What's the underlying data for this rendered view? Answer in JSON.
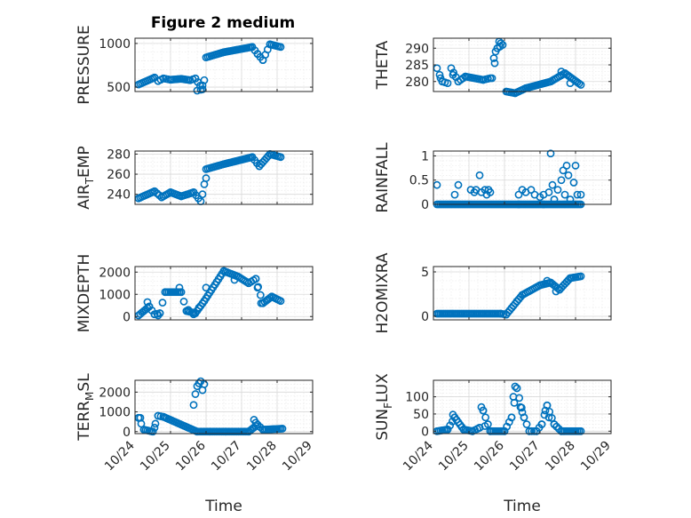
{
  "figure": {
    "title": "Figure 2 medium"
  },
  "chart_data": [
    {
      "type": "scatter",
      "title": "Figure 2 medium",
      "ylabel": "PRESSURE",
      "xlabel": "",
      "xlim": [
        0,
        5
      ],
      "ylim": [
        450,
        1060
      ],
      "xticks": [
        0,
        1,
        2,
        3,
        4,
        5
      ],
      "xticklabels": [
        "10/24",
        "10/25",
        "10/26",
        "10/27",
        "10/28",
        "10/29"
      ],
      "show_xticklabels": false,
      "yticks": [
        500,
        1000
      ],
      "yticklabels": [
        "500",
        "1000"
      ],
      "color": "#0072bd",
      "segments": [
        [
          0.1,
          530,
          0.55,
          610
        ],
        [
          0.55,
          610,
          0.65,
          570
        ],
        [
          0.65,
          570,
          0.8,
          600
        ],
        [
          0.8,
          600,
          1.0,
          585
        ],
        [
          1.0,
          585,
          1.3,
          595
        ],
        [
          1.3,
          595,
          1.55,
          580
        ],
        [
          1.55,
          580,
          1.7,
          600
        ],
        [
          1.7,
          600,
          1.9,
          475
        ],
        [
          2.0,
          840,
          2.5,
          900
        ],
        [
          2.5,
          900,
          3.3,
          960
        ],
        [
          3.3,
          960,
          3.45,
          880
        ],
        [
          3.45,
          880,
          3.6,
          810
        ],
        [
          3.6,
          810,
          3.8,
          990
        ],
        [
          3.8,
          990,
          4.1,
          960
        ]
      ],
      "extra_points": [
        [
          1.75,
          460
        ],
        [
          1.85,
          470
        ],
        [
          1.9,
          520
        ],
        [
          1.95,
          580
        ]
      ]
    },
    {
      "type": "scatter",
      "ylabel": "THETA",
      "xlabel": "",
      "xlim": [
        0,
        5
      ],
      "ylim": [
        277,
        293
      ],
      "xticks": [
        0,
        1,
        2,
        3,
        4,
        5
      ],
      "xticklabels": [
        "10/24",
        "10/25",
        "10/26",
        "10/27",
        "10/28",
        "10/29"
      ],
      "show_xticklabels": false,
      "yticks": [
        280,
        285,
        290
      ],
      "yticklabels": [
        "280",
        "285",
        "290"
      ],
      "color": "#0072bd",
      "segments": [
        [
          0.1,
          284,
          0.25,
          280
        ],
        [
          0.25,
          280,
          0.4,
          279.5
        ],
        [
          0.5,
          284,
          0.7,
          280
        ],
        [
          0.7,
          280,
          0.9,
          281.5
        ],
        [
          0.9,
          281.5,
          1.4,
          280.5
        ],
        [
          1.4,
          280.5,
          1.6,
          281
        ],
        [
          1.65,
          281,
          1.8,
          290
        ],
        [
          1.8,
          290,
          1.95,
          291
        ],
        [
          2.05,
          277,
          2.3,
          276.5
        ],
        [
          2.3,
          276.5,
          2.6,
          278
        ],
        [
          2.6,
          278,
          3.3,
          280
        ],
        [
          3.3,
          280,
          3.7,
          282.5
        ],
        [
          3.7,
          282.5,
          4.15,
          279
        ]
      ],
      "extra_points": [
        [
          0.2,
          281
        ],
        [
          0.55,
          282
        ],
        [
          1.7,
          287
        ],
        [
          1.75,
          289
        ],
        [
          1.85,
          292
        ],
        [
          1.9,
          291.5
        ],
        [
          3.6,
          283
        ],
        [
          3.85,
          279.5
        ]
      ]
    },
    {
      "type": "scatter",
      "ylabel": "AIR_TEMP",
      "xlabel": "",
      "xlim": [
        0,
        5
      ],
      "ylim": [
        230,
        283
      ],
      "xticks": [
        0,
        1,
        2,
        3,
        4,
        5
      ],
      "xticklabels": [
        "10/24",
        "10/25",
        "10/26",
        "10/27",
        "10/28",
        "10/29"
      ],
      "show_xticklabels": false,
      "yticks": [
        240,
        260,
        280
      ],
      "yticklabels": [
        "240",
        "260",
        "280"
      ],
      "color": "#0072bd",
      "segments": [
        [
          0.1,
          236,
          0.55,
          243
        ],
        [
          0.55,
          243,
          0.75,
          237
        ],
        [
          0.75,
          237,
          1.0,
          242
        ],
        [
          1.0,
          242,
          1.3,
          238
        ],
        [
          1.3,
          238,
          1.65,
          242
        ],
        [
          1.65,
          242,
          1.85,
          233
        ],
        [
          2.0,
          265,
          2.5,
          270
        ],
        [
          2.5,
          270,
          3.3,
          277
        ],
        [
          3.3,
          277,
          3.5,
          268
        ],
        [
          3.5,
          268,
          3.8,
          280
        ],
        [
          3.8,
          280,
          4.1,
          277
        ]
      ],
      "extra_points": [
        [
          1.9,
          240
        ],
        [
          1.95,
          250
        ],
        [
          2.0,
          256
        ]
      ]
    },
    {
      "type": "scatter",
      "ylabel": "RAINFALL",
      "xlabel": "",
      "xlim": [
        0,
        5
      ],
      "ylim": [
        0,
        1.1
      ],
      "xticks": [
        0,
        1,
        2,
        3,
        4,
        5
      ],
      "xticklabels": [
        "10/24",
        "10/25",
        "10/26",
        "10/27",
        "10/28",
        "10/29"
      ],
      "show_xticklabels": false,
      "yticks": [
        0,
        0.5,
        1
      ],
      "yticklabels": [
        "0",
        "0.5",
        "1"
      ],
      "color": "#0072bd",
      "segments": [
        [
          0.1,
          0,
          1.05,
          0
        ],
        [
          1.1,
          0,
          1.55,
          0
        ],
        [
          1.6,
          0,
          2.4,
          0
        ],
        [
          2.4,
          0,
          3.1,
          0
        ],
        [
          3.1,
          0,
          4.15,
          0
        ]
      ],
      "extra_points": [
        [
          0.1,
          0.4
        ],
        [
          0.6,
          0.2
        ],
        [
          0.7,
          0.4
        ],
        [
          1.05,
          0.3
        ],
        [
          1.15,
          0.25
        ],
        [
          1.2,
          0.3
        ],
        [
          1.3,
          0.6
        ],
        [
          1.35,
          0.25
        ],
        [
          1.45,
          0.3
        ],
        [
          1.5,
          0.2
        ],
        [
          1.55,
          0.3
        ],
        [
          1.6,
          0.25
        ],
        [
          2.4,
          0.2
        ],
        [
          2.5,
          0.3
        ],
        [
          2.6,
          0.25
        ],
        [
          2.75,
          0.3
        ],
        [
          2.85,
          0.2
        ],
        [
          3.0,
          0.15
        ],
        [
          3.1,
          0.2
        ],
        [
          3.25,
          0.25
        ],
        [
          3.3,
          1.05
        ],
        [
          3.35,
          0.4
        ],
        [
          3.4,
          0.1
        ],
        [
          3.5,
          0.3
        ],
        [
          3.6,
          0.5
        ],
        [
          3.65,
          0.7
        ],
        [
          3.7,
          0.2
        ],
        [
          3.75,
          0.8
        ],
        [
          3.8,
          0.6
        ],
        [
          3.85,
          0.1
        ],
        [
          3.95,
          0.45
        ],
        [
          4.0,
          0.8
        ],
        [
          4.05,
          0.2
        ],
        [
          4.15,
          0.2
        ]
      ]
    },
    {
      "type": "scatter",
      "ylabel": "MIXDEPTH",
      "xlabel": "",
      "xlim": [
        0,
        5
      ],
      "ylim": [
        -150,
        2250
      ],
      "xticks": [
        0,
        1,
        2,
        3,
        4,
        5
      ],
      "xticklabels": [
        "10/24",
        "10/25",
        "10/26",
        "10/27",
        "10/28",
        "10/29"
      ],
      "show_xticklabels": false,
      "yticks": [
        0,
        1000,
        2000
      ],
      "yticklabels": [
        "0",
        "1000",
        "2000"
      ],
      "color": "#0072bd",
      "segments": [
        [
          0.1,
          50,
          0.4,
          450
        ],
        [
          0.4,
          450,
          0.55,
          100
        ],
        [
          0.55,
          100,
          0.7,
          150
        ],
        [
          0.7,
          150,
          0.85,
          1100
        ],
        [
          0.85,
          1100,
          1.3,
          1100
        ],
        [
          1.3,
          1100,
          1.45,
          250
        ],
        [
          1.45,
          250,
          1.7,
          150
        ],
        [
          1.7,
          150,
          1.95,
          700
        ],
        [
          1.95,
          700,
          2.5,
          2050
        ],
        [
          2.5,
          2050,
          2.9,
          1800
        ],
        [
          2.9,
          1800,
          3.2,
          1500
        ],
        [
          3.2,
          1500,
          3.4,
          1700
        ],
        [
          3.4,
          1700,
          3.6,
          600
        ],
        [
          3.6,
          600,
          3.85,
          900
        ],
        [
          3.85,
          900,
          4.1,
          700
        ]
      ],
      "extra_points": [
        [
          0.35,
          650
        ],
        [
          0.65,
          50
        ],
        [
          1.25,
          1300
        ],
        [
          1.5,
          300
        ],
        [
          1.65,
          100
        ],
        [
          1.8,
          400
        ],
        [
          2.0,
          1300
        ],
        [
          2.8,
          1650
        ],
        [
          3.45,
          1300
        ],
        [
          3.55,
          600
        ]
      ]
    },
    {
      "type": "scatter",
      "ylabel": "H2OMIXRA",
      "xlabel": "",
      "xlim": [
        0,
        5
      ],
      "ylim": [
        -0.4,
        5.6
      ],
      "xticks": [
        0,
        1,
        2,
        3,
        4,
        5
      ],
      "xticklabels": [
        "10/24",
        "10/25",
        "10/26",
        "10/27",
        "10/28",
        "10/29"
      ],
      "show_xticklabels": false,
      "yticks": [
        0,
        5
      ],
      "yticklabels": [
        "0",
        "5"
      ],
      "color": "#0072bd",
      "segments": [
        [
          0.1,
          0.3,
          1.9,
          0.3
        ],
        [
          1.9,
          0.3,
          2.05,
          0.2
        ],
        [
          2.05,
          0.2,
          2.5,
          2.4
        ],
        [
          2.5,
          2.4,
          3.0,
          3.5
        ],
        [
          3.0,
          3.5,
          3.3,
          3.8
        ],
        [
          3.3,
          3.8,
          3.55,
          3.0
        ],
        [
          3.55,
          3.0,
          3.85,
          4.3
        ],
        [
          3.85,
          4.3,
          4.15,
          4.5
        ]
      ],
      "extra_points": [
        [
          2.35,
          1.7
        ],
        [
          3.2,
          4.0
        ],
        [
          3.45,
          2.8
        ]
      ]
    },
    {
      "type": "scatter",
      "ylabel": "TERR_MSL",
      "xlabel": "Time",
      "xlim": [
        0,
        5
      ],
      "ylim": [
        -100,
        2600
      ],
      "xticks": [
        0,
        1,
        2,
        3,
        4,
        5
      ],
      "xticklabels": [
        "10/24",
        "10/25",
        "10/26",
        "10/27",
        "10/28",
        "10/29"
      ],
      "show_xticklabels": true,
      "yticks": [
        0,
        1000,
        2000
      ],
      "yticklabels": [
        "0",
        "1000",
        "2000"
      ],
      "color": "#0072bd",
      "segments": [
        [
          0.1,
          700,
          0.25,
          100
        ],
        [
          0.25,
          100,
          0.5,
          0
        ],
        [
          0.5,
          0,
          0.65,
          800
        ],
        [
          0.65,
          800,
          0.8,
          750
        ],
        [
          0.8,
          750,
          1.75,
          0
        ],
        [
          1.75,
          0,
          2.1,
          0
        ],
        [
          2.1,
          0,
          3.2,
          0
        ],
        [
          3.2,
          0,
          3.45,
          350
        ],
        [
          3.45,
          350,
          3.6,
          100
        ],
        [
          3.6,
          100,
          4.15,
          150
        ]
      ],
      "extra_points": [
        [
          0.1,
          700
        ],
        [
          0.15,
          700
        ],
        [
          0.55,
          200
        ],
        [
          1.65,
          1350
        ],
        [
          1.7,
          1900
        ],
        [
          1.75,
          2300
        ],
        [
          1.8,
          2450
        ],
        [
          1.85,
          2550
        ],
        [
          1.9,
          2100
        ],
        [
          1.95,
          2400
        ],
        [
          3.35,
          600
        ],
        [
          3.4,
          450
        ]
      ]
    },
    {
      "type": "scatter",
      "ylabel": "SUN_FLUX",
      "xlabel": "Time",
      "xlim": [
        0,
        5
      ],
      "ylim": [
        -7,
        148
      ],
      "xticks": [
        0,
        1,
        2,
        3,
        4,
        5
      ],
      "xticklabels": [
        "10/24",
        "10/25",
        "10/26",
        "10/27",
        "10/28",
        "10/29"
      ],
      "show_xticklabels": true,
      "yticks": [
        0,
        50,
        100
      ],
      "yticklabels": [
        "0",
        "50",
        "100"
      ],
      "color": "#0072bd",
      "segments": [
        [
          0.1,
          0,
          0.4,
          5
        ],
        [
          0.4,
          5,
          0.6,
          40
        ],
        [
          0.6,
          40,
          0.85,
          5
        ],
        [
          0.85,
          5,
          1.1,
          0
        ],
        [
          1.1,
          0,
          1.3,
          10
        ],
        [
          1.3,
          10,
          1.4,
          60
        ],
        [
          1.4,
          60,
          1.6,
          0
        ],
        [
          1.6,
          0,
          2.0,
          0
        ],
        [
          2.0,
          0,
          2.2,
          40
        ],
        [
          2.2,
          40,
          2.35,
          125
        ],
        [
          2.35,
          125,
          2.55,
          40
        ],
        [
          2.55,
          40,
          2.7,
          0
        ],
        [
          2.7,
          0,
          2.9,
          0
        ],
        [
          2.9,
          0,
          3.05,
          20
        ],
        [
          3.05,
          20,
          3.2,
          75
        ],
        [
          3.2,
          75,
          3.4,
          20
        ],
        [
          3.4,
          20,
          3.6,
          0
        ],
        [
          3.6,
          0,
          4.15,
          0
        ]
      ],
      "extra_points": [
        [
          0.55,
          48
        ],
        [
          1.35,
          70
        ],
        [
          1.45,
          15
        ],
        [
          2.25,
          100
        ],
        [
          2.3,
          130
        ],
        [
          2.45,
          70
        ],
        [
          2.5,
          55
        ],
        [
          3.15,
          60
        ],
        [
          3.25,
          40
        ]
      ]
    }
  ]
}
